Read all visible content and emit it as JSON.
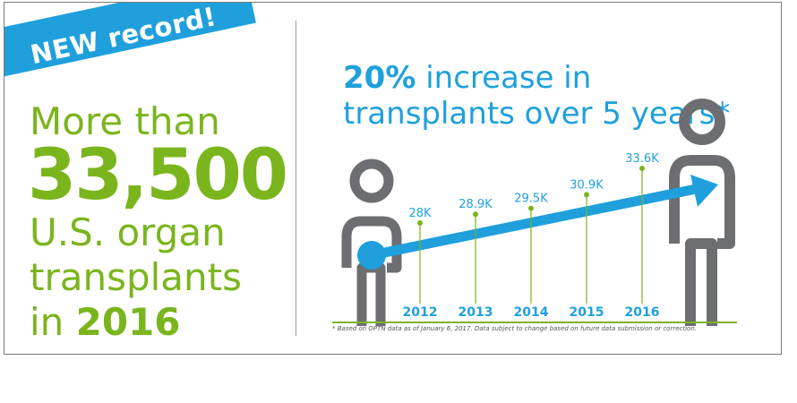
{
  "badge": "NEW record!",
  "left": {
    "line1": "More than",
    "number": "33,500",
    "line3": "U.S. organ",
    "line4": "transplants",
    "line5_prefix": "in ",
    "line5_year": "2016"
  },
  "headline": {
    "percent": "20%",
    "rest1": " increase in",
    "line2": "transplants over 5 years*"
  },
  "footnote": "* Based on OPTN data as of January 6, 2017. Data subject to change based on future data submission or correction.",
  "colors": {
    "green": "#7ab51d",
    "blue": "#1fa0dd",
    "gray": "#6d6e71"
  },
  "chart_data": {
    "type": "line",
    "categories": [
      "2012",
      "2013",
      "2014",
      "2015",
      "2016"
    ],
    "values": [
      28.0,
      28.9,
      29.5,
      30.9,
      33.6
    ],
    "value_labels": [
      "28K",
      "28.9K",
      "29.5K",
      "30.9K",
      "33.6K"
    ],
    "title": "20% increase in transplants over 5 years*",
    "unit": "K transplants"
  }
}
